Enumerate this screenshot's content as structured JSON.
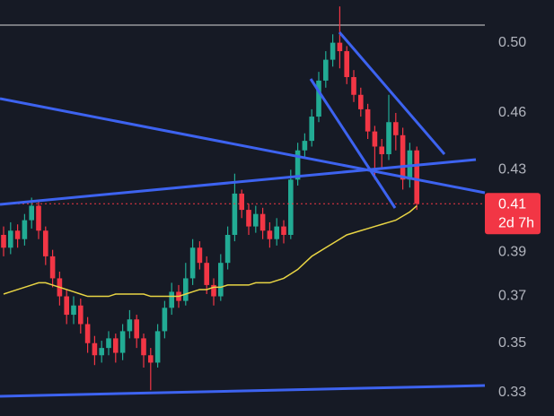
{
  "chart_data": {
    "type": "candlestick",
    "log_scale": true,
    "up_color": "#22ab94",
    "down_color": "#f23645",
    "ma_color": "#e9d544",
    "open": [
      0.398,
      0.392,
      0.4,
      0.396,
      0.405,
      0.412,
      0.4,
      0.388,
      0.378,
      0.37,
      0.362,
      0.366,
      0.358,
      0.35,
      0.345,
      0.348,
      0.352,
      0.346,
      0.355,
      0.36,
      0.352,
      0.345,
      0.342,
      0.355,
      0.365,
      0.372,
      0.368,
      0.378,
      0.392,
      0.385,
      0.375,
      0.37,
      0.385,
      0.398,
      0.418,
      0.41,
      0.402,
      0.408,
      0.4,
      0.396,
      0.402,
      0.398,
      0.425,
      0.44,
      0.445,
      0.458,
      0.478,
      0.49,
      0.5,
      0.495,
      0.48,
      0.47,
      0.462,
      0.45,
      0.442,
      0.438,
      0.455,
      0.448,
      0.425,
      0.44
    ],
    "high": [
      0.402,
      0.404,
      0.403,
      0.408,
      0.416,
      0.414,
      0.402,
      0.391,
      0.381,
      0.373,
      0.37,
      0.369,
      0.361,
      0.353,
      0.351,
      0.355,
      0.354,
      0.358,
      0.364,
      0.362,
      0.354,
      0.348,
      0.358,
      0.368,
      0.376,
      0.375,
      0.385,
      0.396,
      0.395,
      0.388,
      0.378,
      0.389,
      0.402,
      0.428,
      0.42,
      0.413,
      0.412,
      0.411,
      0.404,
      0.406,
      0.405,
      0.43,
      0.444,
      0.449,
      0.462,
      0.483,
      0.495,
      0.505,
      0.522,
      0.498,
      0.484,
      0.474,
      0.465,
      0.453,
      0.446,
      0.47,
      0.46,
      0.452,
      0.444,
      0.442
    ],
    "low": [
      0.388,
      0.389,
      0.392,
      0.393,
      0.401,
      0.396,
      0.384,
      0.374,
      0.366,
      0.358,
      0.358,
      0.354,
      0.346,
      0.341,
      0.342,
      0.345,
      0.342,
      0.343,
      0.352,
      0.348,
      0.34,
      0.331,
      0.34,
      0.352,
      0.362,
      0.365,
      0.366,
      0.375,
      0.382,
      0.371,
      0.366,
      0.368,
      0.382,
      0.395,
      0.406,
      0.398,
      0.399,
      0.396,
      0.392,
      0.393,
      0.394,
      0.396,
      0.422,
      0.436,
      0.442,
      0.455,
      0.474,
      0.486,
      0.485,
      0.476,
      0.466,
      0.458,
      0.446,
      0.425,
      0.43,
      0.435,
      0.44,
      0.42,
      0.421,
      0.41
    ],
    "close": [
      0.392,
      0.4,
      0.396,
      0.405,
      0.412,
      0.4,
      0.388,
      0.378,
      0.37,
      0.362,
      0.366,
      0.358,
      0.35,
      0.345,
      0.348,
      0.352,
      0.346,
      0.355,
      0.36,
      0.352,
      0.345,
      0.342,
      0.355,
      0.365,
      0.372,
      0.368,
      0.378,
      0.392,
      0.385,
      0.375,
      0.37,
      0.385,
      0.398,
      0.418,
      0.41,
      0.402,
      0.408,
      0.4,
      0.396,
      0.402,
      0.398,
      0.425,
      0.44,
      0.445,
      0.458,
      0.478,
      0.49,
      0.5,
      0.495,
      0.48,
      0.47,
      0.462,
      0.45,
      0.442,
      0.438,
      0.455,
      0.448,
      0.425,
      0.44,
      0.413
    ],
    "ma": [
      0.371,
      0.372,
      0.373,
      0.374,
      0.375,
      0.376,
      0.376,
      0.375,
      0.374,
      0.373,
      0.372,
      0.371,
      0.37,
      0.37,
      0.37,
      0.37,
      0.371,
      0.371,
      0.371,
      0.371,
      0.371,
      0.37,
      0.37,
      0.37,
      0.37,
      0.37,
      0.371,
      0.372,
      0.373,
      0.373,
      0.374,
      0.374,
      0.375,
      0.375,
      0.375,
      0.375,
      0.376,
      0.376,
      0.376,
      0.377,
      0.378,
      0.38,
      0.382,
      0.385,
      0.388,
      0.39,
      0.392,
      0.394,
      0.396,
      0.398,
      0.399,
      0.4,
      0.401,
      0.402,
      0.403,
      0.404,
      0.405,
      0.407,
      0.409,
      0.412
    ],
    "ylim": [
      0.321,
      0.526
    ],
    "yticks": [
      0.33,
      0.35,
      0.37,
      0.39,
      0.43,
      0.46,
      {
        "value": 0.5,
        "label": "0.50"
      }
    ],
    "ma_label": "0.41",
    "price_label": "0.41",
    "countdown": "2d 7h"
  }
}
